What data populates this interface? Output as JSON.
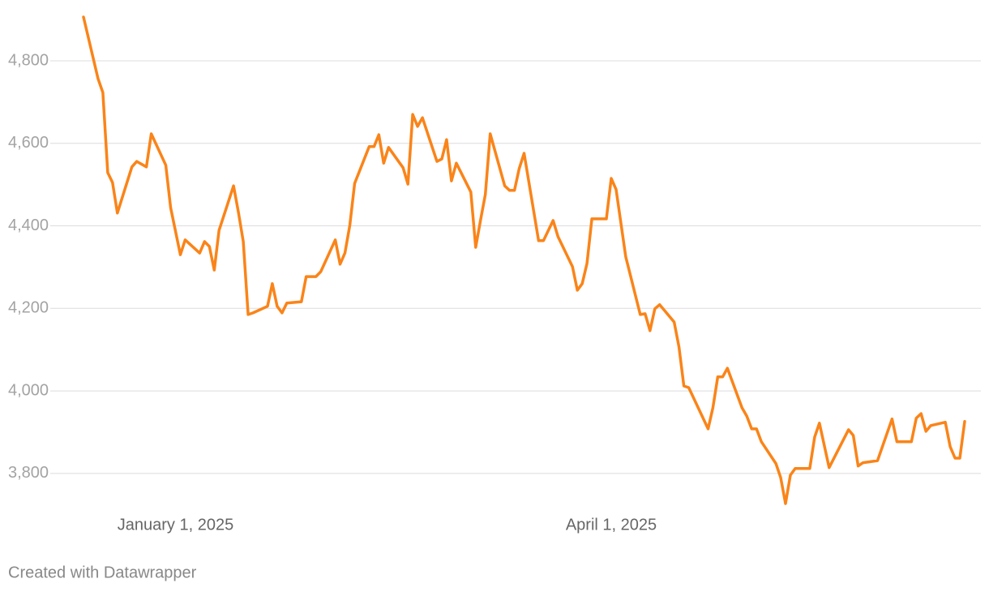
{
  "chart_data": {
    "type": "line",
    "footer": "Created with Datawrapper",
    "x": [
      "2024-12-13",
      "2024-12-16",
      "2024-12-17",
      "2024-12-18",
      "2024-12-19",
      "2024-12-20",
      "2024-12-23",
      "2024-12-24",
      "2024-12-26",
      "2024-12-27",
      "2024-12-30",
      "2024-12-31",
      "2025-01-02",
      "2025-01-03",
      "2025-01-06",
      "2025-01-07",
      "2025-01-08",
      "2025-01-09",
      "2025-01-10",
      "2025-01-13",
      "2025-01-14",
      "2025-01-15",
      "2025-01-16",
      "2025-01-17",
      "2025-01-20",
      "2025-01-21",
      "2025-01-22",
      "2025-01-23",
      "2025-01-24",
      "2025-01-27",
      "2025-01-28",
      "2025-01-30",
      "2025-01-31",
      "2025-02-03",
      "2025-02-04",
      "2025-02-05",
      "2025-02-06",
      "2025-02-07",
      "2025-02-10",
      "2025-02-11",
      "2025-02-12",
      "2025-02-13",
      "2025-02-14",
      "2025-02-17",
      "2025-02-18",
      "2025-02-19",
      "2025-02-20",
      "2025-02-21",
      "2025-02-24",
      "2025-02-25",
      "2025-02-26",
      "2025-02-27",
      "2025-02-28",
      "2025-03-03",
      "2025-03-04",
      "2025-03-05",
      "2025-03-06",
      "2025-03-07",
      "2025-03-10",
      "2025-03-11",
      "2025-03-12",
      "2025-03-13",
      "2025-03-14",
      "2025-03-17",
      "2025-03-18",
      "2025-03-20",
      "2025-03-21",
      "2025-03-24",
      "2025-03-25",
      "2025-03-26",
      "2025-03-27",
      "2025-03-28",
      "2025-03-31",
      "2025-04-01",
      "2025-04-02",
      "2025-04-04",
      "2025-04-07",
      "2025-04-08",
      "2025-04-09",
      "2025-04-10",
      "2025-04-11",
      "2025-04-14",
      "2025-04-15",
      "2025-04-16",
      "2025-04-17",
      "2025-04-21",
      "2025-04-22",
      "2025-04-23",
      "2025-04-24",
      "2025-04-25",
      "2025-04-28",
      "2025-04-29",
      "2025-04-30",
      "2025-05-01",
      "2025-05-02",
      "2025-05-05",
      "2025-05-06",
      "2025-05-07",
      "2025-05-08",
      "2025-05-09",
      "2025-05-12",
      "2025-05-13",
      "2025-05-14",
      "2025-05-16",
      "2025-05-20",
      "2025-05-21",
      "2025-05-22",
      "2025-05-23",
      "2025-05-26",
      "2025-05-27",
      "2025-05-29",
      "2025-05-30",
      "2025-06-02",
      "2025-06-03",
      "2025-06-04",
      "2025-06-05",
      "2025-06-06",
      "2025-06-09",
      "2025-06-10",
      "2025-06-11",
      "2025-06-12",
      "2025-06-13"
    ],
    "series": [
      {
        "name": "Value",
        "color": "#fa8419",
        "values": [
          4906,
          4757,
          4723,
          4529,
          4505,
          4431,
          4543,
          4556,
          4543,
          4623,
          4547,
          4444,
          4330,
          4366,
          4334,
          4362,
          4350,
          4293,
          4389,
          4497,
          4433,
          4362,
          4185,
          4189,
          4205,
          4260,
          4205,
          4189,
          4213,
          4216,
          4277,
          4277,
          4289,
          4366,
          4307,
          4334,
          4401,
          4503,
          4592,
          4592,
          4621,
          4552,
          4590,
          4541,
          4501,
          4670,
          4641,
          4662,
          4556,
          4562,
          4609,
          4509,
          4552,
          4482,
          4348,
          4413,
          4476,
          4623,
          4497,
          4486,
          4486,
          4539,
          4576,
          4364,
          4364,
          4413,
          4374,
          4301,
          4244,
          4260,
          4309,
          4417,
          4417,
          4515,
          4488,
          4325,
          4185,
          4187,
          4146,
          4199,
          4209,
          4167,
          4106,
          4012,
          4008,
          3908,
          3959,
          4034,
          4034,
          4055,
          3959,
          3939,
          3908,
          3908,
          3877,
          3824,
          3790,
          3727,
          3796,
          3812,
          3812,
          3888,
          3922,
          3814,
          3906,
          3892,
          3818,
          3826,
          3831,
          3865,
          3932,
          3877,
          3877,
          3934,
          3945,
          3902,
          3916,
          3924,
          3865,
          3837,
          3837,
          3926
        ]
      }
    ],
    "xlim": [
      "2024-12-13",
      "2025-06-13"
    ],
    "xticks": [
      {
        "value": "2025-01-01",
        "label": "January 1, 2025"
      },
      {
        "value": "2025-04-01",
        "label": "April 1, 2025"
      }
    ],
    "ylim": [
      3725,
      4910
    ],
    "yticks": [
      {
        "value": 3800,
        "label": "3,800"
      },
      {
        "value": 4000,
        "label": "4,000"
      },
      {
        "value": 4200,
        "label": "4,200"
      },
      {
        "value": 4400,
        "label": "4,400"
      },
      {
        "value": 4600,
        "label": "4,600"
      },
      {
        "value": 4800,
        "label": "4,800"
      }
    ],
    "grid": true
  }
}
